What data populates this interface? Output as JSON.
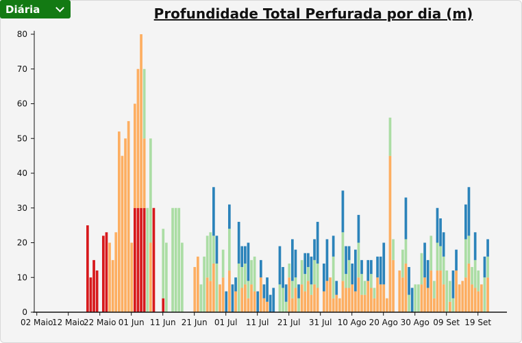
{
  "dropdown": {
    "selected": "Diária"
  },
  "chart_data": {
    "type": "bar",
    "stacked": true,
    "title": "Profundidade Total Perfurada por dia (m)",
    "xlabel": "",
    "ylabel": "",
    "ylim": [
      0,
      80
    ],
    "yticks": [
      0,
      10,
      20,
      30,
      40,
      50,
      60,
      70,
      80
    ],
    "x_unit": "day offset from 02 Maio",
    "xlim": [
      0,
      146
    ],
    "xticks": [
      {
        "day": 0,
        "label": "02 Maio"
      },
      {
        "day": 10,
        "label": "12 Maio"
      },
      {
        "day": 20,
        "label": "22 Maio"
      },
      {
        "day": 30,
        "label": "01 Jun"
      },
      {
        "day": 40,
        "label": "11 Jun"
      },
      {
        "day": 50,
        "label": "21 Jun"
      },
      {
        "day": 60,
        "label": "01 Jul"
      },
      {
        "day": 70,
        "label": "11 Jul"
      },
      {
        "day": 80,
        "label": "21 Jul"
      },
      {
        "day": 90,
        "label": "31 Jul"
      },
      {
        "day": 100,
        "label": "10 Ago"
      },
      {
        "day": 110,
        "label": "20 Ago"
      },
      {
        "day": 120,
        "label": "30 Ago"
      },
      {
        "day": 130,
        "label": "09 Set"
      },
      {
        "day": 140,
        "label": "19 Set"
      }
    ],
    "series_colors": {
      "red": "#d7191c",
      "orange": "#fdae61",
      "green": "#abdda4",
      "blue": "#2b83ba"
    },
    "series_order": [
      "red",
      "orange",
      "green",
      "blue"
    ],
    "bars": [
      [
        15,
        25,
        0,
        0,
        0
      ],
      [
        16,
        10,
        0,
        0,
        0
      ],
      [
        17,
        15,
        0,
        0,
        0
      ],
      [
        18,
        12,
        0,
        0,
        0
      ],
      [
        20,
        22,
        0,
        0,
        0
      ],
      [
        21,
        23,
        0,
        0,
        0
      ],
      [
        22,
        0,
        20,
        0,
        0
      ],
      [
        23,
        0,
        15,
        0,
        0
      ],
      [
        24,
        0,
        23,
        0,
        0
      ],
      [
        25,
        0,
        52,
        0,
        0
      ],
      [
        26,
        0,
        45,
        0,
        0
      ],
      [
        27,
        0,
        50,
        0,
        0
      ],
      [
        28,
        0,
        55,
        0,
        0
      ],
      [
        29,
        0,
        20,
        0,
        0
      ],
      [
        30,
        30,
        30,
        0,
        0
      ],
      [
        31,
        30,
        40,
        0,
        0
      ],
      [
        32,
        30,
        50,
        0,
        0
      ],
      [
        33,
        30,
        20,
        20,
        0
      ],
      [
        34,
        0,
        0,
        30,
        0
      ],
      [
        35,
        0,
        20,
        30,
        0
      ],
      [
        36,
        30,
        0,
        0,
        0
      ],
      [
        39,
        4,
        0,
        20,
        0
      ],
      [
        40,
        0,
        0,
        20,
        0
      ],
      [
        42,
        0,
        0,
        30,
        0
      ],
      [
        43,
        0,
        0,
        30,
        0
      ],
      [
        44,
        0,
        0,
        30,
        0
      ],
      [
        45,
        0,
        0,
        20,
        0
      ],
      [
        49,
        0,
        13,
        0,
        0
      ],
      [
        50,
        0,
        16,
        0,
        0
      ],
      [
        51,
        0,
        0,
        8,
        0
      ],
      [
        52,
        0,
        0,
        16,
        0
      ],
      [
        53,
        0,
        10,
        12,
        0
      ],
      [
        54,
        0,
        9,
        14,
        0
      ],
      [
        55,
        0,
        14,
        8,
        14
      ],
      [
        56,
        0,
        0,
        14,
        8
      ],
      [
        57,
        0,
        8,
        0,
        0
      ],
      [
        58,
        0,
        10,
        8,
        0
      ],
      [
        59,
        0,
        0,
        0,
        6
      ],
      [
        60,
        0,
        12,
        12,
        7
      ],
      [
        61,
        0,
        0,
        0,
        8
      ],
      [
        62,
        0,
        6,
        0,
        4
      ],
      [
        63,
        0,
        0,
        14,
        12
      ],
      [
        64,
        0,
        7,
        6,
        6
      ],
      [
        65,
        0,
        8,
        6,
        5
      ],
      [
        66,
        0,
        4,
        5,
        11
      ],
      [
        67,
        0,
        8,
        7,
        0
      ],
      [
        68,
        0,
        6,
        10,
        0
      ],
      [
        69,
        0,
        0,
        0,
        6
      ],
      [
        70,
        0,
        10,
        0,
        5
      ],
      [
        71,
        0,
        4,
        0,
        4
      ],
      [
        72,
        0,
        3,
        0,
        7
      ],
      [
        73,
        0,
        0,
        0,
        5
      ],
      [
        74,
        0,
        0,
        0,
        7
      ],
      [
        76,
        0,
        0,
        8,
        11
      ],
      [
        77,
        0,
        0,
        7,
        6
      ],
      [
        78,
        0,
        0,
        3,
        5
      ],
      [
        79,
        0,
        10,
        4,
        0
      ],
      [
        80,
        0,
        4,
        5,
        12
      ],
      [
        81,
        0,
        7,
        3,
        8
      ],
      [
        82,
        0,
        0,
        4,
        4
      ],
      [
        83,
        0,
        8,
        7,
        0
      ],
      [
        84,
        0,
        6,
        5,
        6
      ],
      [
        85,
        0,
        9,
        4,
        4
      ],
      [
        86,
        0,
        5,
        3,
        8
      ],
      [
        87,
        0,
        8,
        7,
        6
      ],
      [
        88,
        0,
        7,
        7,
        12
      ],
      [
        90,
        0,
        6,
        0,
        8
      ],
      [
        91,
        0,
        9,
        0,
        12
      ],
      [
        92,
        0,
        10,
        0,
        0
      ],
      [
        93,
        0,
        4,
        12,
        6
      ],
      [
        94,
        0,
        5,
        0,
        4
      ],
      [
        95,
        0,
        4,
        0,
        0
      ],
      [
        96,
        0,
        9,
        14,
        12
      ],
      [
        97,
        0,
        7,
        4,
        8
      ],
      [
        98,
        0,
        7,
        8,
        4
      ],
      [
        99,
        0,
        8,
        0,
        6
      ],
      [
        100,
        0,
        6,
        0,
        12
      ],
      [
        101,
        0,
        10,
        10,
        8
      ],
      [
        102,
        0,
        5,
        6,
        4
      ],
      [
        103,
        0,
        5,
        4,
        0
      ],
      [
        104,
        0,
        9,
        0,
        6
      ],
      [
        105,
        0,
        7,
        4,
        4
      ],
      [
        106,
        0,
        4,
        3,
        0
      ],
      [
        107,
        0,
        10,
        0,
        6
      ],
      [
        108,
        0,
        8,
        0,
        8
      ],
      [
        109,
        0,
        8,
        0,
        12
      ],
      [
        110,
        0,
        4,
        0,
        0
      ],
      [
        111,
        0,
        45,
        11,
        0
      ],
      [
        112,
        0,
        15,
        6,
        0
      ],
      [
        114,
        0,
        12,
        0,
        0
      ],
      [
        115,
        0,
        10,
        8,
        0
      ],
      [
        116,
        0,
        14,
        7,
        12
      ],
      [
        117,
        0,
        0,
        5,
        8
      ],
      [
        118,
        0,
        0,
        0,
        7
      ],
      [
        119,
        0,
        0,
        8,
        0
      ],
      [
        120,
        0,
        0,
        8,
        0
      ],
      [
        121,
        0,
        8,
        9,
        0
      ],
      [
        122,
        0,
        10,
        0,
        10
      ],
      [
        123,
        0,
        7,
        0,
        8
      ],
      [
        124,
        0,
        12,
        10,
        0
      ],
      [
        125,
        0,
        4,
        5,
        0
      ],
      [
        126,
        0,
        12,
        8,
        10
      ],
      [
        127,
        0,
        12,
        7,
        8
      ],
      [
        128,
        0,
        8,
        8,
        7
      ],
      [
        129,
        0,
        0,
        12,
        0
      ],
      [
        130,
        0,
        3,
        6,
        0
      ],
      [
        131,
        0,
        0,
        4,
        8
      ],
      [
        132,
        0,
        12,
        0,
        6
      ],
      [
        133,
        0,
        8,
        0,
        0
      ],
      [
        134,
        0,
        9,
        0,
        0
      ],
      [
        135,
        0,
        10,
        11,
        10
      ],
      [
        136,
        0,
        14,
        8,
        14
      ],
      [
        137,
        0,
        8,
        5,
        0
      ],
      [
        138,
        0,
        7,
        8,
        8
      ],
      [
        139,
        0,
        6,
        6,
        0
      ],
      [
        140,
        0,
        8,
        0,
        0
      ],
      [
        141,
        0,
        0,
        10,
        6
      ],
      [
        142,
        0,
        10,
        6,
        5
      ]
    ]
  }
}
